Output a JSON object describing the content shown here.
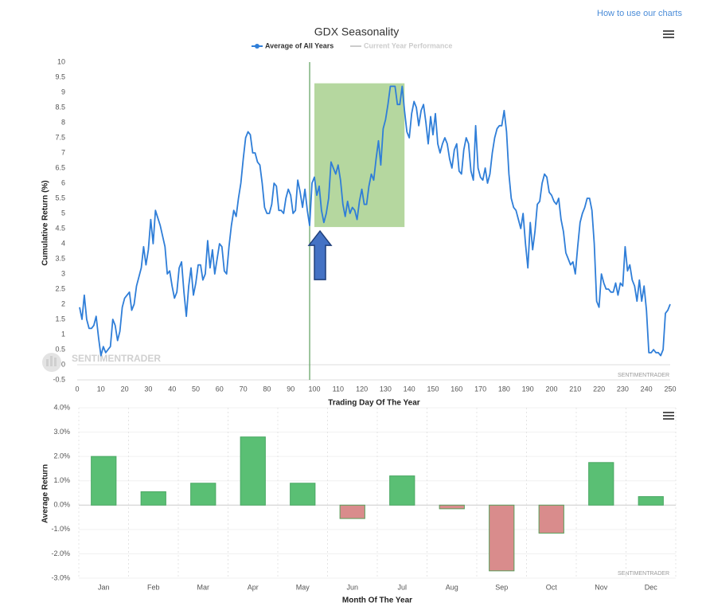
{
  "header": {
    "link": "How to use our charts"
  },
  "chart_data": [
    {
      "type": "line",
      "title": "GDX Seasonality",
      "x_label": "Trading Day Of The Year",
      "y_label": "Cumulative Return (%)",
      "watermark": "SENTIMENTRADER",
      "logo": "SENTIMENTRADER",
      "x": [
        1,
        2,
        3,
        4,
        5,
        6,
        7,
        8,
        9,
        10,
        11,
        12,
        13,
        14,
        15,
        16,
        17,
        18,
        19,
        20,
        22,
        23,
        24,
        25,
        27,
        28,
        29,
        30,
        31,
        32,
        33,
        35,
        37,
        38,
        39,
        40,
        41,
        42,
        43,
        44,
        45,
        46,
        47,
        48,
        49,
        50,
        51,
        52,
        53,
        54,
        55,
        56,
        57,
        58,
        59,
        60,
        61,
        62,
        63,
        64,
        65,
        66,
        67,
        68,
        69,
        70,
        71,
        72,
        73,
        74,
        75,
        76,
        77,
        78,
        79,
        80,
        81,
        82,
        83,
        84,
        85,
        86,
        87,
        88,
        89,
        90,
        91,
        92,
        93,
        94,
        95,
        96,
        97,
        98,
        99,
        100,
        101,
        102,
        103,
        104,
        105,
        106,
        107,
        108,
        109,
        110,
        111,
        112,
        113,
        114,
        115,
        116,
        117,
        118,
        119,
        120,
        121,
        122,
        123,
        124,
        125,
        126,
        127,
        128,
        129,
        130,
        131,
        132,
        133,
        134,
        135,
        136,
        137,
        138,
        139,
        140,
        141,
        142,
        143,
        144,
        145,
        146,
        147,
        148,
        149,
        150,
        151,
        152,
        153,
        154,
        155,
        156,
        157,
        158,
        159,
        160,
        161,
        162,
        163,
        164,
        165,
        166,
        167,
        168,
        169,
        170,
        171,
        172,
        173,
        174,
        175,
        176,
        177,
        178,
        179,
        180,
        181,
        182,
        183,
        184,
        185,
        186,
        187,
        188,
        189,
        190,
        191,
        192,
        193,
        194,
        195,
        196,
        197,
        198,
        199,
        200,
        201,
        202,
        203,
        204,
        205,
        206,
        207,
        208,
        209,
        210,
        211,
        212,
        213,
        214,
        215,
        216,
        217,
        218,
        219,
        220,
        221,
        222,
        223,
        224,
        225,
        226,
        227,
        228,
        229,
        230,
        231,
        232,
        233,
        234,
        235,
        236,
        237,
        238,
        239,
        240,
        241,
        242,
        243,
        244,
        245,
        246,
        247,
        248,
        249,
        250
      ],
      "series": [
        {
          "name": "Average of All Years",
          "color": "#2f7ed8",
          "values": [
            1.9,
            1.5,
            2.3,
            1.5,
            1.2,
            1.2,
            1.3,
            1.6,
            0.9,
            0.3,
            0.6,
            0.4,
            0.5,
            0.6,
            1.5,
            1.3,
            0.8,
            1.1,
            1.9,
            2.2,
            2.4,
            1.8,
            2.0,
            2.6,
            3.2,
            3.9,
            3.3,
            3.8,
            4.8,
            4.0,
            5.1,
            4.6,
            3.9,
            3.0,
            3.1,
            2.6,
            2.2,
            2.4,
            3.2,
            3.4,
            2.4,
            1.6,
            2.6,
            3.2,
            2.3,
            2.7,
            3.3,
            3.3,
            2.8,
            3.0,
            4.1,
            3.2,
            3.8,
            3.0,
            3.5,
            4.0,
            3.9,
            3.1,
            3.0,
            3.9,
            4.6,
            5.1,
            4.9,
            5.5,
            6.0,
            6.8,
            7.5,
            7.7,
            7.6,
            7.0,
            7.0,
            6.7,
            6.6,
            6.0,
            5.2,
            5.0,
            5.0,
            5.3,
            6.0,
            5.9,
            5.1,
            5.1,
            5.0,
            5.5,
            5.8,
            5.6,
            5.0,
            5.1,
            6.1,
            5.7,
            5.2,
            5.8,
            5.1,
            4.6,
            6.0,
            6.2,
            5.6,
            5.9,
            5.1,
            4.7,
            5.0,
            5.5,
            6.7,
            6.5,
            6.3,
            6.6,
            6.1,
            5.3,
            4.9,
            5.4,
            5.0,
            5.2,
            5.1,
            4.8,
            5.4,
            5.8,
            5.3,
            5.3,
            5.9,
            6.3,
            6.1,
            6.8,
            7.4,
            6.6,
            7.8,
            8.1,
            8.6,
            9.2,
            9.2,
            9.2,
            8.6,
            8.6,
            9.2,
            8.4,
            7.7,
            7.5,
            8.3,
            8.7,
            8.5,
            7.9,
            8.4,
            8.6,
            8.0,
            7.3,
            8.2,
            7.6,
            8.3,
            7.3,
            7.0,
            7.3,
            7.5,
            7.3,
            6.8,
            6.5,
            7.1,
            7.3,
            6.4,
            6.3,
            7.1,
            7.5,
            7.3,
            6.4,
            6.1,
            7.9,
            6.5,
            6.2,
            6.1,
            6.5,
            6.0,
            6.3,
            7.0,
            7.5,
            7.8,
            7.9,
            7.9,
            8.4,
            7.7,
            6.3,
            5.5,
            5.2,
            5.1,
            4.8,
            4.5,
            5.0,
            4.0,
            3.2,
            4.7,
            3.8,
            4.4,
            5.3,
            5.4,
            6.0,
            6.3,
            6.2,
            5.7,
            5.6,
            5.4,
            5.3,
            5.5,
            4.8,
            4.4,
            3.7,
            3.5,
            3.3,
            3.4,
            3.0,
            3.9,
            4.7,
            5.0,
            5.2,
            5.5,
            5.5,
            5.1,
            4.0,
            2.1,
            1.9,
            3.0,
            2.7,
            2.5,
            2.5,
            2.4,
            2.4,
            2.7,
            2.3,
            2.7,
            2.6,
            3.9,
            3.1,
            3.3,
            2.8,
            2.6,
            2.1,
            2.8,
            2.1,
            2.6,
            1.8,
            0.4,
            0.4,
            0.5,
            0.4,
            0.4,
            0.3,
            0.5,
            1.7,
            1.8,
            2.0
          ]
        }
      ],
      "inactive_legend": {
        "name": "Current Year Performance",
        "color": "#cccccc"
      },
      "xlim": [
        0,
        250
      ],
      "xticks": [
        0,
        10,
        20,
        30,
        40,
        50,
        60,
        70,
        80,
        90,
        100,
        110,
        120,
        130,
        140,
        150,
        160,
        170,
        180,
        190,
        200,
        210,
        220,
        230,
        240,
        250
      ],
      "ylim": [
        -0.5,
        10
      ],
      "yticks": [
        10,
        9.5,
        9,
        8.5,
        8,
        7.5,
        7,
        6.5,
        6,
        5.5,
        5,
        4.5,
        4,
        3.5,
        3,
        2.5,
        2,
        1.5,
        1,
        0.5,
        0,
        -0.5
      ],
      "marker_x": 98,
      "highlight_x": [
        100,
        138
      ],
      "highlight_y": [
        4.55,
        9.3
      ],
      "highlight_color": "#b5d79f"
    },
    {
      "type": "bar",
      "x_label": "Month Of The Year",
      "y_label": "Average Return",
      "watermark": "SENTIMENTRADER",
      "categories": [
        "Jan",
        "Feb",
        "Mar",
        "Apr",
        "May",
        "Jun",
        "Jul",
        "Aug",
        "Sep",
        "Oct",
        "Nov",
        "Dec"
      ],
      "values": [
        2.0,
        0.55,
        0.9,
        2.8,
        0.9,
        -0.55,
        1.2,
        -0.15,
        -2.7,
        -1.15,
        1.75,
        0.35
      ],
      "positive_color": "#5abf74",
      "negative_color": "#d98c8c",
      "ylim": [
        -3,
        4
      ],
      "yticks": [
        {
          "value": 4,
          "label": "4.0%"
        },
        {
          "value": 3,
          "label": "3.0%"
        },
        {
          "value": 2,
          "label": "2.0%"
        },
        {
          "value": 1,
          "label": "1.0%"
        },
        {
          "value": 0,
          "label": "0.0%"
        },
        {
          "value": -1,
          "label": "-1.0%"
        },
        {
          "value": -2,
          "label": "-2.0%"
        },
        {
          "value": -3,
          "label": "-3.0%"
        }
      ],
      "grid": true
    }
  ]
}
